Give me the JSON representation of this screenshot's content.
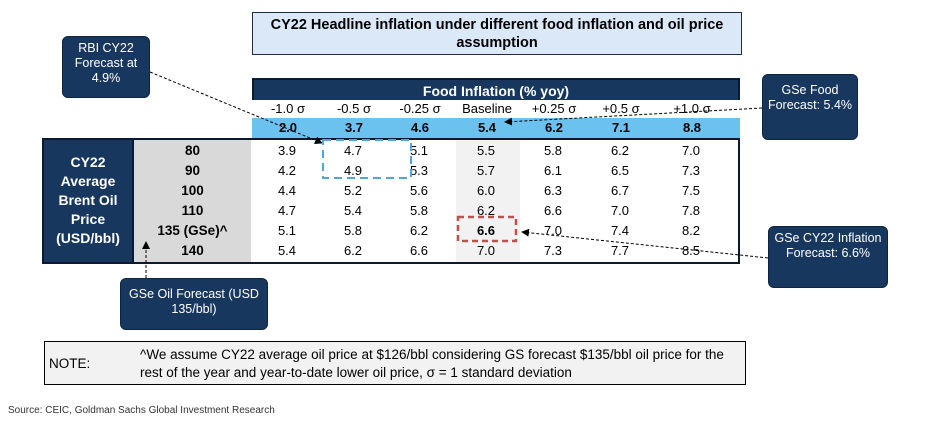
{
  "title": "CY22 Headline inflation under different food inflation and oil price assumption",
  "callouts": {
    "rbi": "RBI CY22 Forecast at 4.9%",
    "gse_food": "GSe Food Forecast: 5.4%",
    "gse_cpi": "GSe CY22 Inflation Forecast: 6.6%",
    "gse_oil": "GSe Oil Forecast (USD 135/bbl)"
  },
  "chart_data": {
    "type": "table",
    "column_header": "Food Inflation (% yoy)",
    "row_header": "CY22 Average Brent Oil Price (USD/bbl)",
    "columns": [
      "-1.0 σ",
      "-0.5 σ",
      "-0.25 σ",
      "Baseline",
      "+0.25 σ",
      "+0.5 σ",
      "+1.0 σ"
    ],
    "food_inflation": [
      "2.0",
      "3.7",
      "4.6",
      "5.4",
      "6.2",
      "7.1",
      "8.8"
    ],
    "rows": [
      "80",
      "90",
      "100",
      "110",
      "135 (GSe)^",
      "140"
    ],
    "values": [
      [
        "3.9",
        "4.7",
        "5.1",
        "5.5",
        "5.8",
        "6.2",
        "7.0"
      ],
      [
        "4.2",
        "4.9",
        "5.3",
        "5.7",
        "6.1",
        "6.5",
        "7.3"
      ],
      [
        "4.4",
        "5.2",
        "5.6",
        "6.0",
        "6.3",
        "6.7",
        "7.5"
      ],
      [
        "4.7",
        "5.4",
        "5.8",
        "6.2",
        "6.6",
        "7.0",
        "7.8"
      ],
      [
        "5.1",
        "5.8",
        "6.2",
        "6.6",
        "7.0",
        "7.4",
        "8.2"
      ],
      [
        "5.4",
        "6.2",
        "6.6",
        "7.0",
        "7.3",
        "7.7",
        "8.5"
      ]
    ]
  },
  "note": {
    "label": "NOTE:",
    "text": "^We assume CY22 average oil price at $126/bbl considering GS forecast $135/bbl oil price for the rest of the year and year-to-date lower oil price, σ = 1 standard deviation"
  },
  "source": "Source: CEIC, Goldman Sachs Global Investment Research",
  "colors": {
    "navy": "#17375e",
    "light_blue": "#6cc2ef",
    "title_fill": "#dbe8f8",
    "highlight_red": "#c0504d",
    "highlight_blue": "#4da6e0"
  }
}
